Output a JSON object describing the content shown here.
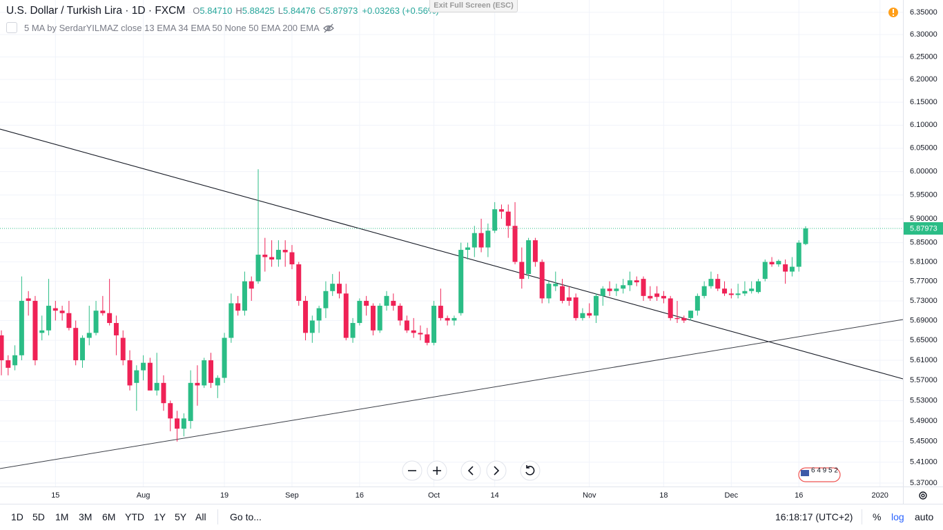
{
  "header": {
    "symbol": "U.S. Dollar / Turkish Lira · 1D · FXCM",
    "ohlc": [
      {
        "key": "O",
        "value": "5.84710"
      },
      {
        "key": "H",
        "value": "5.88425"
      },
      {
        "key": "L",
        "value": "5.84476"
      },
      {
        "key": "C",
        "value": "5.87973"
      }
    ],
    "change": "+0.03263 (+0.56%)",
    "indicator": "5 MA by SerdarYILMAZ close 13 EMA 34 EMA 50 None 50 EMA 200 EMA",
    "exit_button": "Exit Full Screen (ESC)"
  },
  "chart_data": {
    "type": "candlestick",
    "categories": [
      null,
      null,
      null,
      null,
      null,
      null,
      null,
      null,
      "15",
      null,
      null,
      null,
      null,
      null,
      null,
      null,
      null,
      null,
      null,
      null,
      null,
      "Aug",
      null,
      null,
      null,
      null,
      null,
      null,
      null,
      null,
      null,
      null,
      null,
      "19",
      null,
      null,
      null,
      null,
      null,
      null,
      null,
      null,
      null,
      "Sep",
      null,
      null,
      null,
      null,
      null,
      null,
      null,
      null,
      null,
      "16",
      null,
      null,
      null,
      null,
      null,
      null,
      null,
      null,
      null,
      null,
      "Oct",
      null,
      null,
      null,
      null,
      null,
      null,
      null,
      null,
      "14",
      null,
      null,
      null,
      null,
      null,
      null,
      null,
      null,
      null,
      null,
      null,
      null,
      null,
      "Nov",
      null,
      null,
      null,
      null,
      null,
      null,
      null,
      null,
      null,
      null,
      "18",
      null,
      null,
      null,
      null,
      null,
      null,
      null,
      null,
      null,
      "Dec",
      null,
      null,
      null,
      null,
      null,
      null,
      null,
      null,
      null,
      "16",
      null,
      null,
      null,
      null,
      null,
      null,
      null,
      null,
      null,
      null,
      null,
      "2020",
      null,
      null,
      null
    ],
    "open": [
      5.66,
      5.61,
      5.6,
      5.62,
      5.735,
      5.73,
      5.665,
      5.67,
      5.715,
      5.71,
      5.705,
      5.675,
      5.61,
      5.655,
      5.665,
      5.71,
      5.705,
      5.685,
      5.655,
      5.61,
      5.565,
      5.59,
      5.605,
      5.55,
      5.565,
      5.525,
      5.495,
      5.475,
      5.49,
      5.565,
      5.56,
      5.61,
      5.56,
      5.575,
      5.655,
      5.725,
      5.71,
      5.77,
      5.77,
      5.825,
      5.82,
      5.815,
      5.835,
      5.83,
      5.805,
      5.73,
      5.665,
      5.69,
      5.715,
      5.75,
      5.765,
      5.745,
      5.655,
      5.685,
      5.73,
      5.72,
      5.67,
      5.72,
      5.73,
      5.72,
      5.69,
      5.67,
      5.665,
      5.662,
      5.645,
      5.72,
      5.695,
      5.69,
      5.705,
      5.835,
      5.84,
      5.87,
      5.84,
      5.875,
      5.92,
      5.915,
      5.885,
      5.81,
      5.785,
      5.855,
      5.81,
      5.735,
      5.76,
      5.76,
      5.737,
      5.737,
      5.695,
      5.705,
      5.7,
      5.74,
      5.755,
      5.75,
      5.755,
      5.762,
      5.772,
      5.775,
      5.74,
      5.745,
      5.74,
      5.735,
      5.695,
      5.695,
      5.695,
      5.71,
      5.74,
      5.76,
      5.775,
      5.755,
      5.745,
      5.742,
      5.745,
      5.75,
      5.748,
      5.775,
      5.81,
      5.805,
      5.805,
      5.79,
      5.8,
      5.8471,
      null,
      null,
      null,
      null,
      null,
      null,
      null,
      null,
      null,
      null,
      null,
      null,
      null,
      null
    ],
    "high": [
      5.67,
      5.62,
      5.64,
      5.78,
      5.75,
      5.74,
      5.7,
      5.775,
      5.73,
      5.72,
      5.73,
      5.69,
      5.66,
      5.72,
      5.73,
      5.74,
      5.775,
      5.7,
      5.67,
      5.63,
      5.6,
      5.62,
      5.615,
      5.625,
      5.58,
      5.53,
      5.51,
      5.505,
      5.59,
      5.6,
      5.615,
      5.625,
      5.58,
      5.665,
      5.745,
      5.74,
      5.79,
      5.78,
      6.005,
      5.86,
      5.855,
      5.855,
      5.855,
      5.845,
      5.81,
      5.74,
      5.7,
      5.72,
      5.77,
      5.785,
      5.79,
      5.765,
      5.695,
      5.735,
      5.74,
      5.725,
      5.725,
      5.75,
      5.745,
      5.725,
      5.7,
      5.695,
      5.68,
      5.675,
      5.73,
      5.755,
      5.7,
      5.7,
      5.85,
      5.85,
      5.885,
      5.9,
      5.89,
      5.935,
      5.93,
      5.93,
      5.935,
      5.84,
      5.86,
      5.86,
      5.815,
      5.77,
      5.79,
      5.775,
      5.76,
      5.745,
      5.715,
      5.725,
      5.745,
      5.76,
      5.77,
      5.765,
      5.775,
      5.79,
      5.78,
      5.78,
      5.76,
      5.76,
      5.75,
      5.74,
      5.73,
      5.7,
      5.71,
      5.745,
      5.77,
      5.79,
      5.785,
      5.77,
      5.755,
      5.765,
      5.77,
      5.77,
      5.775,
      5.815,
      5.82,
      5.815,
      5.815,
      5.82,
      5.855,
      5.88425,
      null,
      null,
      null,
      null,
      null,
      null,
      null,
      null,
      null,
      null,
      null,
      null,
      null,
      null
    ],
    "low": [
      5.58,
      5.58,
      5.59,
      5.61,
      5.7,
      5.6,
      5.65,
      5.66,
      5.69,
      5.69,
      5.67,
      5.6,
      5.595,
      5.64,
      5.66,
      5.7,
      5.68,
      5.62,
      5.6,
      5.55,
      5.51,
      5.57,
      5.55,
      5.54,
      5.51,
      5.47,
      5.45,
      5.46,
      5.475,
      5.52,
      5.555,
      5.555,
      5.535,
      5.565,
      5.645,
      5.7,
      5.7,
      5.73,
      5.765,
      5.79,
      5.8,
      5.8,
      5.8,
      5.795,
      5.72,
      5.65,
      5.645,
      5.665,
      5.695,
      5.74,
      5.735,
      5.65,
      5.645,
      5.68,
      5.7,
      5.66,
      5.665,
      5.71,
      5.71,
      5.68,
      5.665,
      5.655,
      5.65,
      5.64,
      5.64,
      5.69,
      5.68,
      5.68,
      5.7,
      5.815,
      5.82,
      5.83,
      5.82,
      5.87,
      5.9,
      5.86,
      5.805,
      5.755,
      5.775,
      5.8,
      5.725,
      5.725,
      5.75,
      5.725,
      5.72,
      5.69,
      5.69,
      5.695,
      5.685,
      5.72,
      5.74,
      5.74,
      5.745,
      5.75,
      5.76,
      5.73,
      5.73,
      5.73,
      5.725,
      5.69,
      5.685,
      5.685,
      5.69,
      5.7,
      5.735,
      5.755,
      5.75,
      5.74,
      5.735,
      5.735,
      5.74,
      5.745,
      5.745,
      5.77,
      5.8,
      5.8,
      5.765,
      5.78,
      5.79,
      5.84476,
      null,
      null,
      null,
      null,
      null,
      null,
      null,
      null,
      null,
      null,
      null,
      null,
      null,
      null
    ],
    "close": [
      5.61,
      5.595,
      5.62,
      5.73,
      5.73,
      5.61,
      5.67,
      5.72,
      5.71,
      5.705,
      5.675,
      5.61,
      5.655,
      5.665,
      5.71,
      5.705,
      5.685,
      5.66,
      5.61,
      5.56,
      5.59,
      5.605,
      5.55,
      5.565,
      5.525,
      5.495,
      5.475,
      5.495,
      5.565,
      5.56,
      5.61,
      5.565,
      5.575,
      5.655,
      5.725,
      5.71,
      5.77,
      5.755,
      5.825,
      5.82,
      5.815,
      5.835,
      5.83,
      5.805,
      5.73,
      5.665,
      5.69,
      5.715,
      5.75,
      5.765,
      5.745,
      5.655,
      5.685,
      5.73,
      5.72,
      5.67,
      5.72,
      5.74,
      5.72,
      5.69,
      5.67,
      5.665,
      5.662,
      5.645,
      5.72,
      5.695,
      5.69,
      5.695,
      5.835,
      5.84,
      5.87,
      5.84,
      5.875,
      5.92,
      5.915,
      5.885,
      5.81,
      5.775,
      5.855,
      5.81,
      5.735,
      5.765,
      5.765,
      5.73,
      5.73,
      5.695,
      5.705,
      5.7,
      5.74,
      5.755,
      5.75,
      5.755,
      5.762,
      5.772,
      5.768,
      5.74,
      5.735,
      5.738,
      5.735,
      5.695,
      5.693,
      5.69,
      5.71,
      5.74,
      5.76,
      5.775,
      5.755,
      5.745,
      5.742,
      5.745,
      5.75,
      5.755,
      5.77,
      5.81,
      5.805,
      5.812,
      5.79,
      5.8,
      5.85,
      5.87973,
      null,
      null,
      null,
      null,
      null,
      null,
      null,
      null,
      null,
      null,
      null,
      null,
      null,
      null
    ],
    "up_color": "#2bbd86",
    "down_color": "#ef2256",
    "ylim": [
      5.366,
      6.378
    ],
    "log": true,
    "grid": true,
    "yticks": [
      {
        "value": 6.35,
        "label": "6.35000"
      },
      {
        "value": 6.3,
        "label": "6.30000"
      },
      {
        "value": 6.25,
        "label": "6.25000"
      },
      {
        "value": 6.2,
        "label": "6.20000"
      },
      {
        "value": 6.15,
        "label": "6.15000"
      },
      {
        "value": 6.1,
        "label": "6.10000"
      },
      {
        "value": 6.05,
        "label": "6.05000"
      },
      {
        "value": 6.0,
        "label": "6.00000"
      },
      {
        "value": 5.95,
        "label": "5.95000"
      },
      {
        "value": 5.9,
        "label": "5.90000"
      },
      {
        "value": 5.85,
        "label": "5.85000"
      },
      {
        "value": 5.81,
        "label": "5.81000"
      },
      {
        "value": 5.77,
        "label": "5.77000"
      },
      {
        "value": 5.73,
        "label": "5.73000"
      },
      {
        "value": 5.69,
        "label": "5.69000"
      },
      {
        "value": 5.65,
        "label": "5.65000"
      },
      {
        "value": 5.61,
        "label": "5.61000"
      },
      {
        "value": 5.57,
        "label": "5.57000"
      },
      {
        "value": 5.53,
        "label": "5.53000"
      },
      {
        "value": 5.49,
        "label": "5.49000"
      },
      {
        "value": 5.45,
        "label": "5.45000"
      },
      {
        "value": 5.41,
        "label": "5.41000"
      },
      {
        "value": 5.37,
        "label": "5.37000"
      }
    ],
    "last_price": {
      "value": 5.87973,
      "label": "5.87973"
    }
  },
  "watermark": "6 4 9 5 2",
  "toolbar": {
    "ranges": [
      "1D",
      "5D",
      "1M",
      "3M",
      "6M",
      "YTD",
      "1Y",
      "5Y",
      "All"
    ],
    "goto": "Go to...",
    "time": "16:18:17 (UTC+2)",
    "percent": "%",
    "log": "log",
    "auto": "auto"
  }
}
